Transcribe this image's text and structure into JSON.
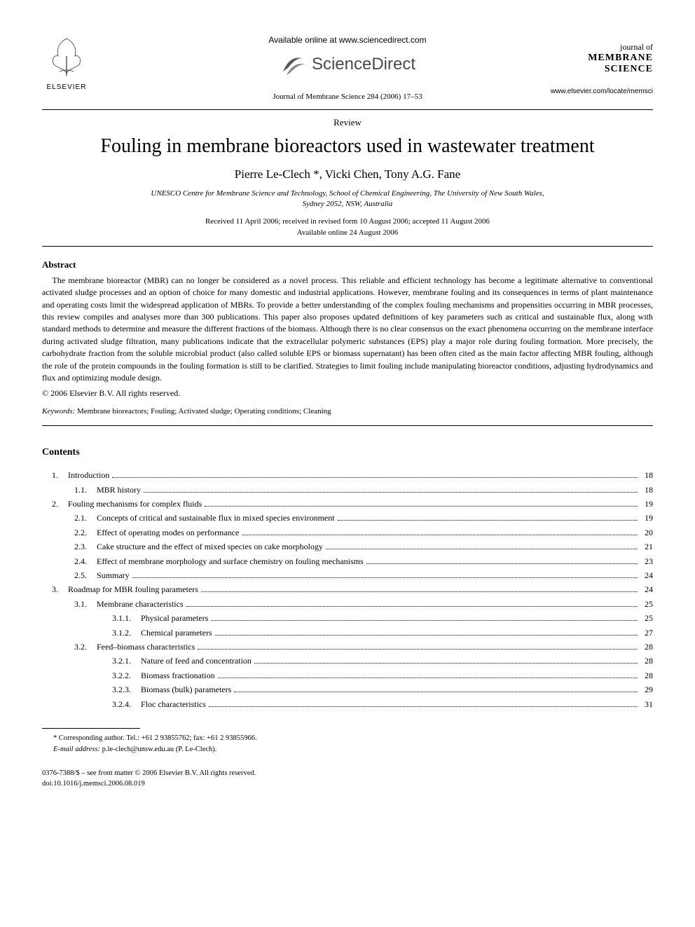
{
  "header": {
    "available_online": "Available online at www.sciencedirect.com",
    "sciencedirect_text": "ScienceDirect",
    "journal_reference": "Journal of Membrane Science 284 (2006) 17–53",
    "elsevier_label": "ELSEVIER",
    "journal_logo": {
      "line1": "journal of",
      "line2": "MEMBRANE",
      "line3": "SCIENCE",
      "url": "www.elsevier.com/locate/memsci"
    }
  },
  "article": {
    "type": "Review",
    "title": "Fouling in membrane bioreactors used in wastewater treatment",
    "authors": "Pierre Le-Clech *, Vicki Chen, Tony A.G. Fane",
    "affiliation_line1": "UNESCO Centre for Membrane Science and Technology, School of Chemical Engineering, The University of New South Wales,",
    "affiliation_line2": "Sydney 2052, NSW, Australia",
    "received": "Received 11 April 2006; received in revised form 10 August 2006; accepted 11 August 2006",
    "available": "Available online 24 August 2006"
  },
  "abstract": {
    "heading": "Abstract",
    "text": "The membrane bioreactor (MBR) can no longer be considered as a novel process. This reliable and efficient technology has become a legitimate alternative to conventional activated sludge processes and an option of choice for many domestic and industrial applications. However, membrane fouling and its consequences in terms of plant maintenance and operating costs limit the widespread application of MBRs. To provide a better understanding of the complex fouling mechanisms and propensities occurring in MBR processes, this review compiles and analyses more than 300 publications. This paper also proposes updated definitions of key parameters such as critical and sustainable flux, along with standard methods to determine and measure the different fractions of the biomass. Although there is no clear consensus on the exact phenomena occurring on the membrane interface during activated sludge filtration, many publications indicate that the extracellular polymeric substances (EPS) play a major role during fouling formation. More precisely, the carbohydrate fraction from the soluble microbial product (also called soluble EPS or biomass supernatant) has been often cited as the main factor affecting MBR fouling, although the role of the protein compounds in the fouling formation is still to be clarified. Strategies to limit fouling include manipulating bioreactor conditions, adjusting hydrodynamics and flux and optimizing module design.",
    "copyright": "© 2006 Elsevier B.V. All rights reserved."
  },
  "keywords": {
    "label": "Keywords:",
    "text": "Membrane bioreactors; Fouling; Activated sludge; Operating conditions; Cleaning"
  },
  "contents": {
    "heading": "Contents",
    "items": [
      {
        "level": 0,
        "num": "1.",
        "title": "Introduction",
        "page": "18"
      },
      {
        "level": 1,
        "num": "1.1.",
        "title": "MBR history",
        "page": "18"
      },
      {
        "level": 0,
        "num": "2.",
        "title": "Fouling mechanisms for complex fluids",
        "page": "19"
      },
      {
        "level": 1,
        "num": "2.1.",
        "title": "Concepts of critical and sustainable flux in mixed species environment",
        "page": "19"
      },
      {
        "level": 1,
        "num": "2.2.",
        "title": "Effect of operating modes on performance",
        "page": "20"
      },
      {
        "level": 1,
        "num": "2.3.",
        "title": "Cake structure and the effect of mixed species on cake morphology",
        "page": "21"
      },
      {
        "level": 1,
        "num": "2.4.",
        "title": "Effect of membrane morphology and surface chemistry on fouling mechanisms",
        "page": "23"
      },
      {
        "level": 1,
        "num": "2.5.",
        "title": "Summary",
        "page": "24"
      },
      {
        "level": 0,
        "num": "3.",
        "title": "Roadmap for MBR fouling parameters",
        "page": "24"
      },
      {
        "level": 1,
        "num": "3.1.",
        "title": "Membrane characteristics",
        "page": "25"
      },
      {
        "level": 2,
        "num": "3.1.1.",
        "title": "Physical parameters",
        "page": "25"
      },
      {
        "level": 2,
        "num": "3.1.2.",
        "title": "Chemical parameters",
        "page": "27"
      },
      {
        "level": 1,
        "num": "3.2.",
        "title": "Feed–biomass characteristics",
        "page": "28"
      },
      {
        "level": 2,
        "num": "3.2.1.",
        "title": "Nature of feed and concentration",
        "page": "28"
      },
      {
        "level": 2,
        "num": "3.2.2.",
        "title": "Biomass fractionation",
        "page": "28"
      },
      {
        "level": 2,
        "num": "3.2.3.",
        "title": "Biomass (bulk) parameters",
        "page": "29"
      },
      {
        "level": 2,
        "num": "3.2.4.",
        "title": "Floc characteristics",
        "page": "31"
      }
    ]
  },
  "footnote": {
    "corresponding": "* Corresponding author. Tel.: +61 2 93855762; fax: +61 2 93855966.",
    "email_label": "E-mail address:",
    "email": "p.le-clech@unsw.edu.au (P. Le-Clech)."
  },
  "footer": {
    "line1": "0376-7388/$ – see front matter © 2006 Elsevier B.V. All rights reserved.",
    "line2": "doi:10.1016/j.memsci.2006.08.019"
  },
  "colors": {
    "text": "#000000",
    "background": "#ffffff",
    "sd_gray": "#4a4a4a",
    "elsevier_orange": "#e87a3a"
  }
}
